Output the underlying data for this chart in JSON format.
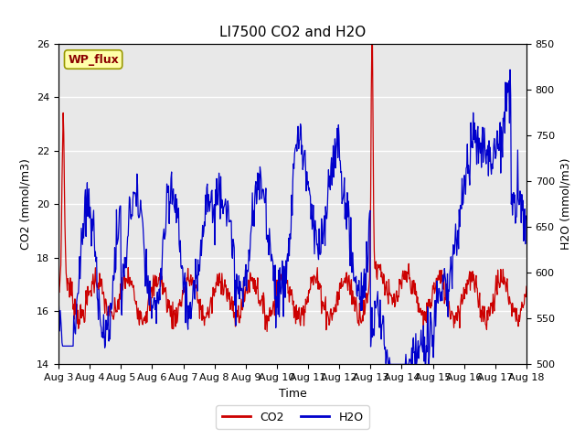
{
  "title": "LI7500 CO2 and H2O",
  "xlabel": "Time",
  "ylabel_left": "CO2 (mmol/m3)",
  "ylabel_right": "H2O (mmol/m3)",
  "ylim_left": [
    14,
    26
  ],
  "ylim_right": [
    500,
    850
  ],
  "yticks_left": [
    14,
    16,
    18,
    20,
    22,
    24,
    26
  ],
  "yticks_right": [
    500,
    550,
    600,
    650,
    700,
    750,
    800,
    850
  ],
  "xtick_labels": [
    "Aug 3",
    "Aug 4",
    "Aug 5",
    "Aug 6",
    "Aug 7",
    "Aug 8",
    "Aug 9",
    "Aug 10",
    "Aug 11",
    "Aug 12",
    "Aug 13",
    "Aug 14",
    "Aug 15",
    "Aug 16",
    "Aug 17",
    "Aug 18"
  ],
  "legend_labels": [
    "CO2",
    "H2O"
  ],
  "co2_color": "#cc0000",
  "h2o_color": "#0000cc",
  "fig_bg_color": "#ffffff",
  "plot_bg_color": "#e8e8e8",
  "title_fontsize": 11,
  "label_fontsize": 9,
  "tick_fontsize": 8,
  "legend_fontsize": 9,
  "wp_flux_label": "WP_flux",
  "wp_flux_bg": "#ffffaa",
  "wp_flux_border": "#999900",
  "wp_flux_text_color": "#8b0000",
  "n_points": 800
}
